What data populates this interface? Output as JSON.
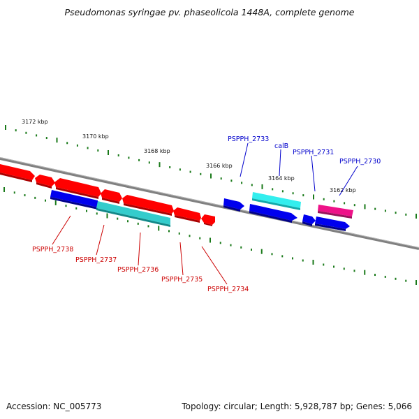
{
  "title": "Pseudomonas syringae pv. phaseolicola 1448A, complete genome",
  "footer": {
    "accession": "Accession: NC_005773",
    "summary": "Topology: circular; Length: 5,928,787 bp; Genes: 5,066"
  },
  "colors": {
    "backbone": "#808080",
    "tick": "#1a7a1a",
    "forward_gene": "#0000ee",
    "forward_rna": "#33dddd",
    "reverse_gene": "#ff0000",
    "reverse_rna": "#33cccc",
    "pseudo": "#ee1188",
    "label_forward": "#0000cc",
    "label_reverse": "#cc0000"
  },
  "scale_labels": [
    "3172 kbp",
    "3170 kbp",
    "3168 kbp",
    "3166 kbp",
    "3164 kbp",
    "3162 kbp"
  ],
  "gene_labels_forward": [
    "PSPPH_2733",
    "calB",
    "PSPPH_2731",
    "PSPPH_2730"
  ],
  "gene_labels_reverse": [
    "PSPPH_2738",
    "PSPPH_2737",
    "PSPPH_2736",
    "PSPPH_2735",
    "PSPPH_2734"
  ]
}
